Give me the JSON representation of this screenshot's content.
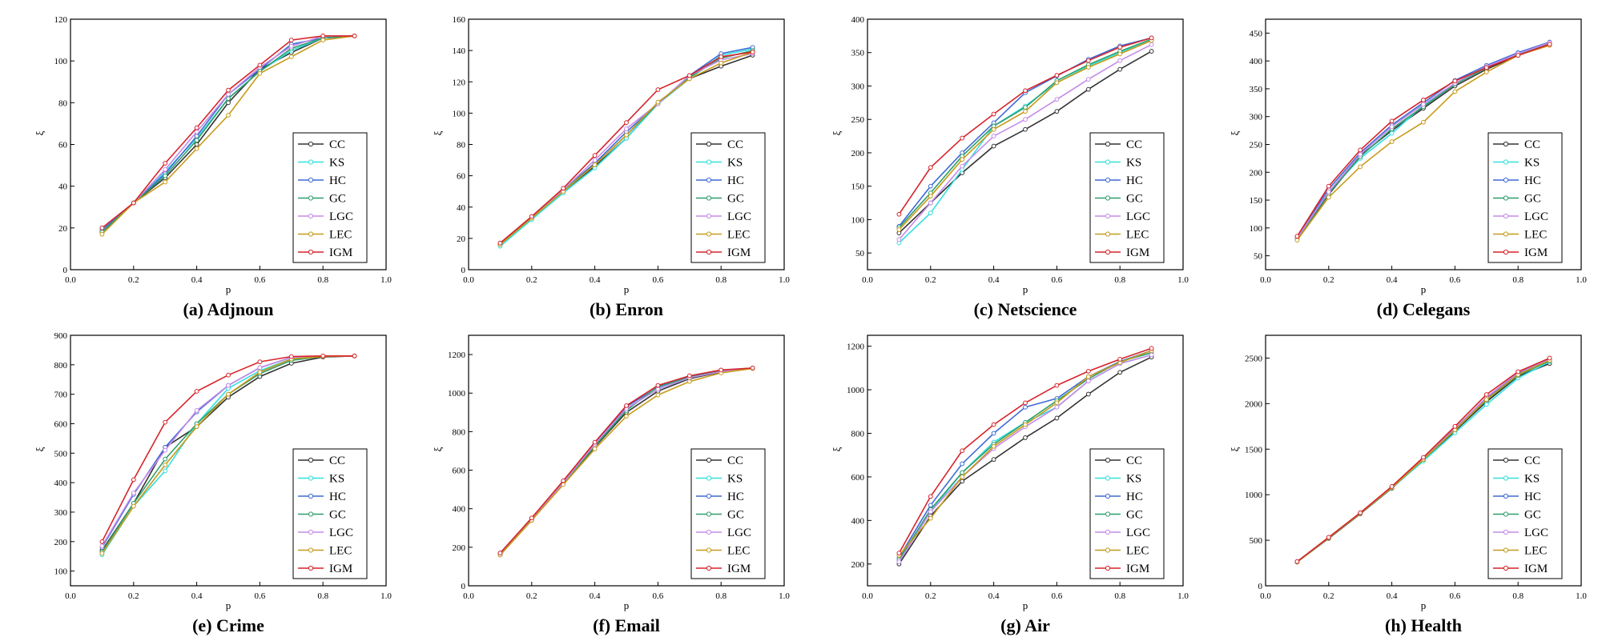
{
  "colors": {
    "CC": "#333333",
    "KS": "#33e0e0",
    "HC": "#3f6bd6",
    "GC": "#2f9e6a",
    "LGC": "#c58be8",
    "LEC": "#c79a1a",
    "IGM": "#d6242a"
  },
  "chart_data": [
    {
      "type": "line",
      "caption": "(a) Adjnoun",
      "xlabel": "p",
      "ylabel": "ξ",
      "x": [
        0.1,
        0.2,
        0.3,
        0.4,
        0.5,
        0.6,
        0.7,
        0.8,
        0.9
      ],
      "xlim": [
        0.0,
        1.0
      ],
      "xticks": [
        "0.0",
        "0.2",
        "0.4",
        "0.6",
        "0.8",
        "1.0"
      ],
      "ylim": [
        0,
        120
      ],
      "yticks": [
        "0",
        "20",
        "40",
        "60",
        "80",
        "100",
        "120"
      ],
      "legend_position": "bottom-right",
      "series": [
        {
          "name": "CC",
          "values": [
            18,
            32,
            44,
            60,
            80,
            96,
            104,
            111,
            112
          ]
        },
        {
          "name": "KS",
          "values": [
            19,
            32,
            47,
            63,
            82,
            95,
            105,
            111,
            112
          ]
        },
        {
          "name": "HC",
          "values": [
            19,
            32,
            46,
            64,
            84,
            96,
            108,
            111,
            112
          ]
        },
        {
          "name": "GC",
          "values": [
            18,
            32,
            45,
            62,
            82,
            95,
            106,
            111,
            112
          ]
        },
        {
          "name": "LGC",
          "values": [
            20,
            32,
            48,
            66,
            84,
            97,
            107,
            112,
            112
          ]
        },
        {
          "name": "LEC",
          "values": [
            17,
            32,
            42,
            58,
            74,
            94,
            102,
            110,
            112
          ]
        },
        {
          "name": "IGM",
          "values": [
            20,
            32,
            51,
            68,
            86,
            98,
            110,
            112,
            112
          ]
        }
      ]
    },
    {
      "type": "line",
      "caption": "(b) Enron",
      "xlabel": "p",
      "ylabel": "ξ",
      "x": [
        0.1,
        0.2,
        0.3,
        0.4,
        0.5,
        0.6,
        0.7,
        0.8,
        0.9
      ],
      "xlim": [
        0.0,
        1.0
      ],
      "xticks": [
        "0.0",
        "0.2",
        "0.4",
        "0.6",
        "0.8",
        "1.0"
      ],
      "ylim": [
        0,
        160
      ],
      "yticks": [
        "0",
        "20",
        "40",
        "60",
        "80",
        "100",
        "120",
        "140",
        "160"
      ],
      "legend_position": "bottom-right",
      "series": [
        {
          "name": "CC",
          "values": [
            16,
            33,
            50,
            66,
            84,
            106,
            122,
            130,
            137
          ]
        },
        {
          "name": "KS",
          "values": [
            15,
            32,
            49,
            65,
            84,
            106,
            122,
            137,
            141
          ]
        },
        {
          "name": "HC",
          "values": [
            17,
            33,
            51,
            68,
            88,
            106,
            124,
            138,
            142
          ]
        },
        {
          "name": "GC",
          "values": [
            17,
            33,
            51,
            67,
            86,
            106,
            123,
            135,
            140
          ]
        },
        {
          "name": "LGC",
          "values": [
            17,
            34,
            51,
            70,
            90,
            106,
            124,
            134,
            138
          ]
        },
        {
          "name": "LEC",
          "values": [
            16,
            33,
            50,
            67,
            86,
            107,
            122,
            132,
            139
          ]
        },
        {
          "name": "IGM",
          "values": [
            17,
            34,
            52,
            73,
            94,
            115,
            124,
            136,
            139
          ]
        }
      ]
    },
    {
      "type": "line",
      "caption": "(c) Netscience",
      "xlabel": "p",
      "ylabel": "ξ",
      "x": [
        0.1,
        0.2,
        0.3,
        0.4,
        0.5,
        0.6,
        0.7,
        0.8,
        0.9
      ],
      "xlim": [
        0.0,
        1.0
      ],
      "xticks": [
        "0.0",
        "0.2",
        "0.4",
        "0.6",
        "0.8",
        "1.0"
      ],
      "ylim": [
        25,
        400
      ],
      "yticks": [
        "50",
        "100",
        "150",
        "200",
        "250",
        "300",
        "350",
        "400"
      ],
      "legend_position": "bottom-right",
      "series": [
        {
          "name": "CC",
          "values": [
            80,
            125,
            170,
            210,
            235,
            262,
            295,
            325,
            352
          ]
        },
        {
          "name": "KS",
          "values": [
            65,
            110,
            175,
            240,
            270,
            305,
            330,
            350,
            368
          ]
        },
        {
          "name": "HC",
          "values": [
            90,
            150,
            200,
            245,
            290,
            315,
            340,
            360,
            372
          ]
        },
        {
          "name": "GC",
          "values": [
            88,
            140,
            195,
            240,
            268,
            308,
            332,
            352,
            370
          ]
        },
        {
          "name": "LGC",
          "values": [
            70,
            125,
            180,
            225,
            250,
            280,
            310,
            338,
            362
          ]
        },
        {
          "name": "LEC",
          "values": [
            85,
            135,
            190,
            235,
            262,
            305,
            328,
            348,
            368
          ]
        },
        {
          "name": "IGM",
          "values": [
            108,
            178,
            222,
            258,
            293,
            316,
            338,
            358,
            372
          ]
        }
      ]
    },
    {
      "type": "line",
      "caption": "(d) Celegans",
      "xlabel": "p",
      "ylabel": "ξ",
      "x": [
        0.1,
        0.2,
        0.3,
        0.4,
        0.5,
        0.6,
        0.7,
        0.8,
        0.9
      ],
      "xlim": [
        0.0,
        1.0
      ],
      "xticks": [
        "0.0",
        "0.2",
        "0.4",
        "0.6",
        "0.8",
        "1.0"
      ],
      "ylim": [
        25,
        475
      ],
      "yticks": [
        "50",
        "100",
        "150",
        "200",
        "250",
        "300",
        "350",
        "400",
        "450"
      ],
      "legend_position": "bottom-right",
      "series": [
        {
          "name": "CC",
          "values": [
            80,
            160,
            230,
            275,
            315,
            355,
            385,
            410,
            430
          ]
        },
        {
          "name": "KS",
          "values": [
            82,
            165,
            225,
            270,
            320,
            360,
            390,
            412,
            432
          ]
        },
        {
          "name": "HC",
          "values": [
            83,
            170,
            235,
            285,
            325,
            365,
            392,
            415,
            434
          ]
        },
        {
          "name": "GC",
          "values": [
            80,
            162,
            228,
            278,
            318,
            358,
            388,
            412,
            432
          ]
        },
        {
          "name": "LGC",
          "values": [
            82,
            165,
            232,
            282,
            322,
            360,
            390,
            413,
            433
          ]
        },
        {
          "name": "LEC",
          "values": [
            78,
            155,
            210,
            255,
            290,
            345,
            380,
            410,
            428
          ]
        },
        {
          "name": "IGM",
          "values": [
            85,
            175,
            240,
            292,
            330,
            364,
            388,
            410,
            430
          ]
        }
      ]
    },
    {
      "type": "line",
      "caption": "(e) Crime",
      "xlabel": "p",
      "ylabel": "ξ",
      "x": [
        0.1,
        0.2,
        0.3,
        0.4,
        0.5,
        0.6,
        0.7,
        0.8,
        0.9
      ],
      "xlim": [
        0.0,
        1.0
      ],
      "xticks": [
        "0.0",
        "0.2",
        "0.4",
        "0.6",
        "0.8",
        "1.0"
      ],
      "ylim": [
        50,
        900
      ],
      "yticks": [
        "100",
        "200",
        "300",
        "400",
        "500",
        "600",
        "700",
        "800",
        "900"
      ],
      "legend_position": "bottom-right",
      "series": [
        {
          "name": "CC",
          "values": [
            170,
            330,
            520,
            590,
            690,
            760,
            805,
            826,
            830
          ]
        },
        {
          "name": "KS",
          "values": [
            155,
            320,
            440,
            600,
            720,
            780,
            820,
            828,
            830
          ]
        },
        {
          "name": "HC",
          "values": [
            180,
            360,
            520,
            640,
            730,
            790,
            825,
            828,
            830
          ]
        },
        {
          "name": "GC",
          "values": [
            165,
            330,
            480,
            600,
            700,
            770,
            815,
            828,
            830
          ]
        },
        {
          "name": "LGC",
          "values": [
            185,
            365,
            510,
            645,
            730,
            790,
            825,
            828,
            830
          ]
        },
        {
          "name": "LEC",
          "values": [
            160,
            320,
            460,
            590,
            700,
            775,
            820,
            828,
            830
          ]
        },
        {
          "name": "IGM",
          "values": [
            200,
            410,
            605,
            710,
            765,
            810,
            828,
            830,
            830
          ]
        }
      ]
    },
    {
      "type": "line",
      "caption": "(f) Email",
      "xlabel": "p",
      "ylabel": "ξ",
      "x": [
        0.1,
        0.2,
        0.3,
        0.4,
        0.5,
        0.6,
        0.7,
        0.8,
        0.9
      ],
      "xlim": [
        0.0,
        1.0
      ],
      "xticks": [
        "0.0",
        "0.2",
        "0.4",
        "0.6",
        "0.8",
        "1.0"
      ],
      "ylim": [
        0,
        1300
      ],
      "yticks": [
        "0",
        "200",
        "400",
        "600",
        "800",
        "1000",
        "1200"
      ],
      "legend_position": "bottom-right",
      "series": [
        {
          "name": "CC",
          "values": [
            160,
            340,
            530,
            720,
            900,
            1010,
            1075,
            1110,
            1130
          ]
        },
        {
          "name": "KS",
          "values": [
            165,
            345,
            535,
            730,
            920,
            1020,
            1080,
            1115,
            1130
          ]
        },
        {
          "name": "HC",
          "values": [
            170,
            350,
            540,
            740,
            930,
            1030,
            1085,
            1118,
            1130
          ]
        },
        {
          "name": "GC",
          "values": [
            165,
            345,
            530,
            725,
            910,
            1035,
            1082,
            1115,
            1130
          ]
        },
        {
          "name": "LGC",
          "values": [
            168,
            345,
            535,
            735,
            920,
            1020,
            1080,
            1112,
            1130
          ]
        },
        {
          "name": "LEC",
          "values": [
            160,
            340,
            525,
            710,
            880,
            990,
            1060,
            1105,
            1128
          ]
        },
        {
          "name": "IGM",
          "values": [
            170,
            352,
            545,
            745,
            935,
            1040,
            1090,
            1120,
            1130
          ]
        }
      ]
    },
    {
      "type": "line",
      "caption": "(g) Air",
      "xlabel": "p",
      "ylabel": "ξ",
      "x": [
        0.1,
        0.2,
        0.3,
        0.4,
        0.5,
        0.6,
        0.7,
        0.8,
        0.9
      ],
      "xlim": [
        0.0,
        1.0
      ],
      "xticks": [
        "0.0",
        "0.2",
        "0.4",
        "0.6",
        "0.8",
        "1.0"
      ],
      "ylim": [
        100,
        1250
      ],
      "yticks": [
        "200",
        "400",
        "600",
        "800",
        "1000",
        "1200"
      ],
      "legend_position": "bottom-right",
      "series": [
        {
          "name": "CC",
          "values": [
            200,
            420,
            580,
            680,
            780,
            870,
            980,
            1080,
            1150
          ]
        },
        {
          "name": "KS",
          "values": [
            210,
            440,
            620,
            760,
            850,
            920,
            1040,
            1120,
            1160
          ]
        },
        {
          "name": "HC",
          "values": [
            230,
            470,
            660,
            800,
            920,
            960,
            1060,
            1130,
            1180
          ]
        },
        {
          "name": "GC",
          "values": [
            220,
            450,
            620,
            750,
            850,
            950,
            1050,
            1130,
            1170
          ]
        },
        {
          "name": "LGC",
          "values": [
            210,
            440,
            600,
            730,
            830,
            920,
            1040,
            1120,
            1160
          ]
        },
        {
          "name": "LEC",
          "values": [
            240,
            410,
            600,
            740,
            840,
            940,
            1060,
            1125,
            1180
          ]
        },
        {
          "name": "IGM",
          "values": [
            250,
            510,
            720,
            840,
            940,
            1020,
            1085,
            1140,
            1190
          ]
        }
      ]
    },
    {
      "type": "line",
      "caption": "(h) Health",
      "xlabel": "p",
      "ylabel": "ξ",
      "x": [
        0.1,
        0.2,
        0.3,
        0.4,
        0.5,
        0.6,
        0.7,
        0.8,
        0.9
      ],
      "xlim": [
        0.0,
        1.0
      ],
      "xticks": [
        "0.0",
        "0.2",
        "0.4",
        "0.6",
        "0.8",
        "1.0"
      ],
      "ylim": [
        0,
        2750
      ],
      "yticks": [
        "0",
        "500",
        "1000",
        "1500",
        "2000",
        "2500"
      ],
      "legend_position": "bottom-right",
      "series": [
        {
          "name": "CC",
          "values": [
            260,
            520,
            790,
            1070,
            1380,
            1700,
            2020,
            2300,
            2440
          ]
        },
        {
          "name": "KS",
          "values": [
            262,
            525,
            795,
            1075,
            1370,
            1680,
            1990,
            2280,
            2460
          ]
        },
        {
          "name": "HC",
          "values": [
            265,
            530,
            800,
            1085,
            1400,
            1730,
            2060,
            2330,
            2480
          ]
        },
        {
          "name": "GC",
          "values": [
            262,
            526,
            796,
            1078,
            1385,
            1710,
            2040,
            2310,
            2470
          ]
        },
        {
          "name": "LGC",
          "values": [
            264,
            528,
            798,
            1080,
            1395,
            1725,
            2070,
            2340,
            2490
          ]
        },
        {
          "name": "LEC",
          "values": [
            262,
            526,
            796,
            1078,
            1388,
            1712,
            2045,
            2320,
            2475
          ]
        },
        {
          "name": "IGM",
          "values": [
            266,
            532,
            802,
            1090,
            1410,
            1750,
            2100,
            2350,
            2500
          ]
        }
      ]
    }
  ]
}
